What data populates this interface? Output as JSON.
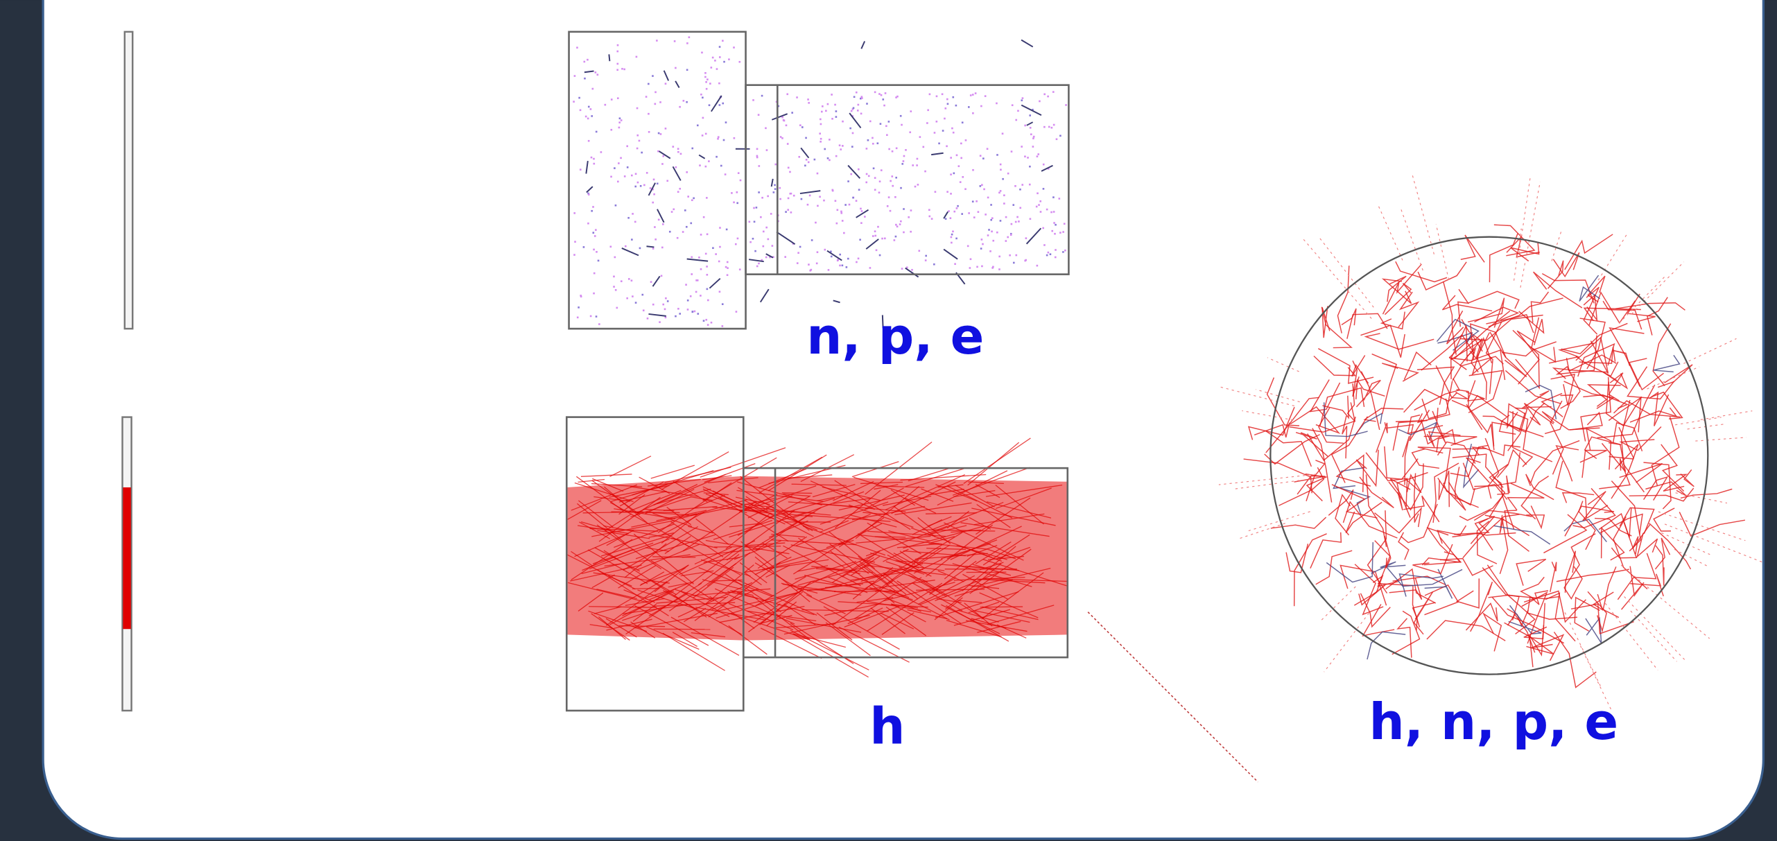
{
  "labels": {
    "top_detector": "n, p, e",
    "bottom_detector": "h",
    "sphere": "h, n, p, e"
  }
}
